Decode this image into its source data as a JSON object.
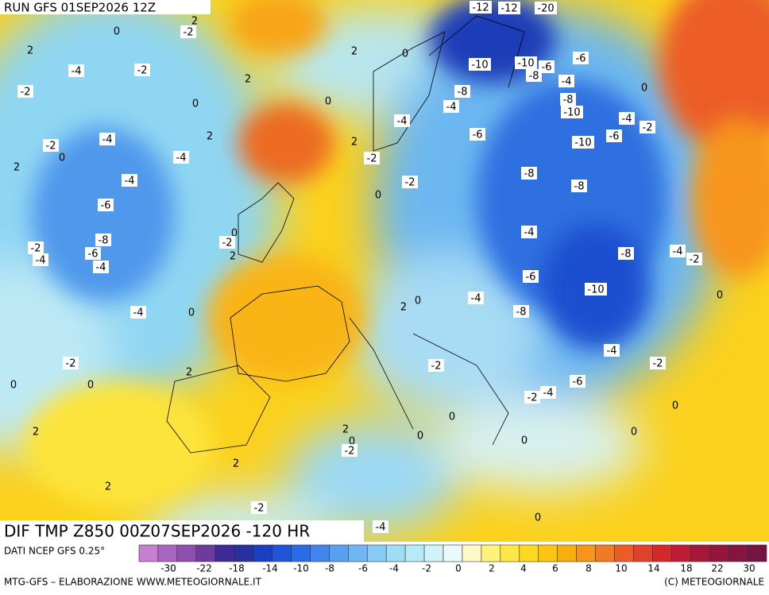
{
  "header": {
    "run": "RUN GFS 01SEP2026 12Z"
  },
  "map": {
    "title": "DIF TMP Z850 00Z07SEP2026 -120 HR",
    "contour_labels": [
      -12,
      -12,
      -20,
      0,
      -2,
      2,
      2,
      -4,
      -2,
      2,
      0,
      2,
      -10,
      -10,
      -6,
      -8,
      -6,
      -4,
      0,
      -2,
      0,
      0,
      -8,
      -4,
      -8,
      -10,
      -4,
      -4,
      -2,
      -6,
      -6,
      2,
      -4,
      -2,
      0,
      -10,
      2,
      -2,
      -4,
      2,
      -8,
      -4,
      -2,
      -8,
      0,
      -6,
      0,
      -2,
      -4,
      -8,
      -2,
      -6,
      -4,
      2,
      -4,
      -8,
      -4,
      -2,
      -6,
      -10,
      0,
      2,
      0,
      -4,
      -8,
      -4,
      0,
      -4,
      -2,
      -2,
      -2,
      2,
      0,
      0,
      -6,
      -4,
      -2,
      0,
      0,
      2,
      2,
      0,
      -2,
      0,
      0,
      0,
      2,
      2,
      -2,
      0,
      -4
    ]
  },
  "footer": {
    "source": "DATI NCEP GFS 0.25°",
    "credit": "MTG-GFS – ELABORAZIONE WWW.METEOGIORNALE.IT",
    "copyright": "(C) METEOGIORNALE"
  },
  "colorbar": {
    "colors": [
      "#c77fd0",
      "#a866c2",
      "#8f4fb0",
      "#6e3a9e",
      "#3d2a95",
      "#28309f",
      "#1a3fc0",
      "#1f55d6",
      "#2a6ce6",
      "#3f86ee",
      "#58a0f2",
      "#6fb6f5",
      "#88cbf6",
      "#9fdcf6",
      "#b6eaf7",
      "#d1f3f7",
      "#eafafa",
      "#fff9c8",
      "#fff27a",
      "#ffe74a",
      "#fcd81e",
      "#fbc512",
      "#f9ae10",
      "#f7951a",
      "#f27a22",
      "#ec5d26",
      "#e0412a",
      "#d02a2c",
      "#bd1c33",
      "#a8163a",
      "#96153e",
      "#861441",
      "#761345"
    ],
    "ticks": [
      -30,
      -22,
      -18,
      -14,
      -10,
      -8,
      -6,
      -4,
      -2,
      0,
      2,
      4,
      6,
      8,
      10,
      14,
      18,
      22,
      30
    ]
  }
}
